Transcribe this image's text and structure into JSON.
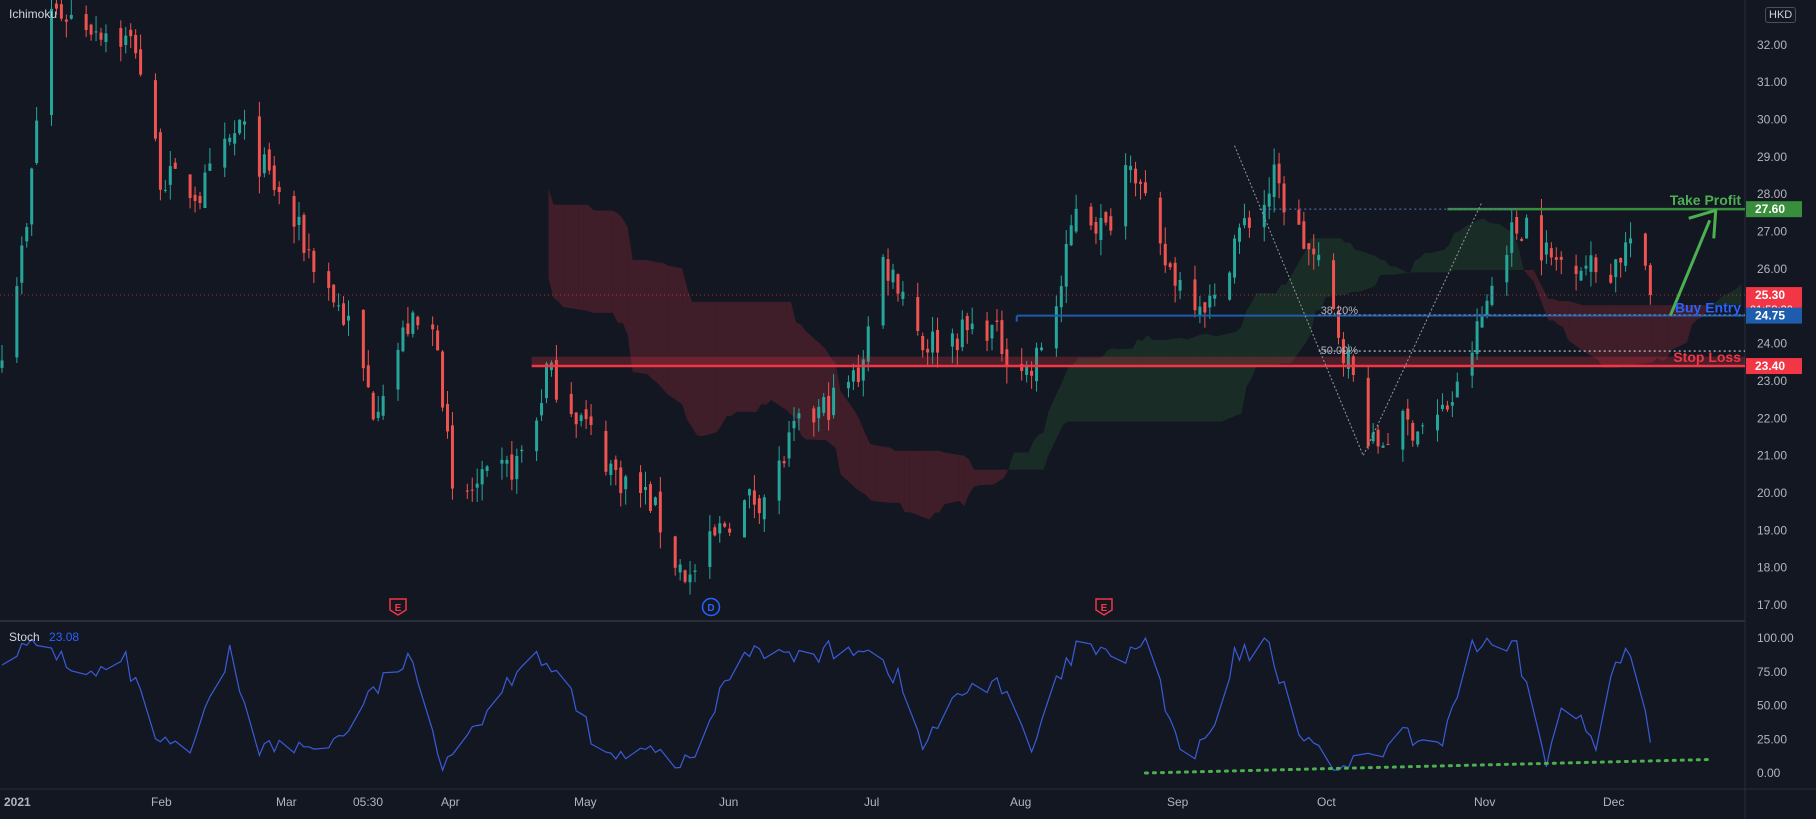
{
  "indicator_labels": {
    "main": "Ichimoku",
    "stoch": "Stoch",
    "stoch_value": "23.08"
  },
  "currency": "HKD",
  "countdown": "01:58:20",
  "event_markers": [
    "E",
    "D",
    "E"
  ],
  "time_axis": [
    {
      "label": "2021",
      "bold": true
    },
    {
      "label": "Feb"
    },
    {
      "label": "Mar"
    },
    {
      "label": "05:30"
    },
    {
      "label": "Apr"
    },
    {
      "label": "May"
    },
    {
      "label": "Jun"
    },
    {
      "label": "Jul"
    },
    {
      "label": "Aug"
    },
    {
      "label": "Sep"
    },
    {
      "label": "Oct"
    },
    {
      "label": "Nov"
    },
    {
      "label": "Dec"
    }
  ],
  "price_ticks": [
    "17.00",
    "18.00",
    "19.00",
    "20.00",
    "21.00",
    "22.00",
    "23.00",
    "24.00",
    "25.00",
    "26.00",
    "27.00",
    "28.00",
    "29.00",
    "30.00",
    "31.00",
    "32.00"
  ],
  "stoch_ticks": [
    "0.00",
    "25.00",
    "50.00",
    "75.00",
    "100.00"
  ],
  "price_badges": [
    {
      "value": "27.60",
      "color": "#388e3c"
    },
    {
      "value": "25.30",
      "color": "#f23645"
    },
    {
      "value": "24.75",
      "color": "#1e5cad"
    },
    {
      "value": "23.40",
      "color": "#f23645"
    }
  ],
  "annotations": [
    {
      "text": "Take Profit",
      "color": "#4caf50"
    },
    {
      "text": "Buy Entry",
      "color": "#2962ff"
    },
    {
      "text": "Stop Loss",
      "color": "#f23645"
    }
  ],
  "fib_labels": [
    "38.20%",
    "50.00%"
  ],
  "chart_data": [
    {
      "type": "candlestick",
      "symbol_currency": "HKD",
      "y_range": [
        16.6,
        33.2
      ],
      "levels": {
        "take_profit": 27.6,
        "last_price": 25.3,
        "buy_entry": 24.75,
        "stop_loss": 23.4
      },
      "close_path": [
        {
          "date": "2021-01-01",
          "close": 24.0
        },
        {
          "date": "2021-01-06",
          "close": 27.0
        },
        {
          "date": "2021-01-10",
          "close": 33.0
        },
        {
          "date": "2021-01-20",
          "close": 32.5
        },
        {
          "date": "2021-01-28",
          "close": 32.0
        },
        {
          "date": "2021-02-02",
          "close": 28.5
        },
        {
          "date": "2021-02-10",
          "close": 28.0
        },
        {
          "date": "2021-02-18",
          "close": 29.8
        },
        {
          "date": "2021-02-25",
          "close": 28.2
        },
        {
          "date": "2021-03-05",
          "close": 26.2
        },
        {
          "date": "2021-03-12",
          "close": 24.5
        },
        {
          "date": "2021-03-17",
          "close": 22.3
        },
        {
          "date": "2021-03-24",
          "close": 24.5
        },
        {
          "date": "2021-03-30",
          "close": 24.2
        },
        {
          "date": "2021-04-02",
          "close": 19.8
        },
        {
          "date": "2021-04-08",
          "close": 20.2
        },
        {
          "date": "2021-04-15",
          "close": 20.8
        },
        {
          "date": "2021-04-19",
          "close": 22.0
        },
        {
          "date": "2021-04-21",
          "close": 23.3
        },
        {
          "date": "2021-04-28",
          "close": 22.0
        },
        {
          "date": "2021-05-05",
          "close": 20.5
        },
        {
          "date": "2021-05-12",
          "close": 19.8
        },
        {
          "date": "2021-05-17",
          "close": 18.2
        },
        {
          "date": "2021-05-20",
          "close": 17.7
        },
        {
          "date": "2021-05-27",
          "close": 19.2
        },
        {
          "date": "2021-06-01",
          "close": 19.8
        },
        {
          "date": "2021-06-05",
          "close": 20.0
        },
        {
          "date": "2021-06-10",
          "close": 21.6
        },
        {
          "date": "2021-06-18",
          "close": 22.5
        },
        {
          "date": "2021-06-23",
          "close": 23.2
        },
        {
          "date": "2021-06-28",
          "close": 26.2
        },
        {
          "date": "2021-07-02",
          "close": 25.5
        },
        {
          "date": "2021-07-06",
          "close": 24.0
        },
        {
          "date": "2021-07-12",
          "close": 24.2
        },
        {
          "date": "2021-07-19",
          "close": 24.5
        },
        {
          "date": "2021-07-23",
          "close": 23.8
        },
        {
          "date": "2021-07-28",
          "close": 23.2
        },
        {
          "date": "2021-08-03",
          "close": 25.5
        },
        {
          "date": "2021-08-06",
          "close": 27.8
        },
        {
          "date": "2021-08-12",
          "close": 27.0
        },
        {
          "date": "2021-08-17",
          "close": 29.2
        },
        {
          "date": "2021-08-22",
          "close": 26.5
        },
        {
          "date": "2021-08-28",
          "close": 25.5
        },
        {
          "date": "2021-09-03",
          "close": 25.0
        },
        {
          "date": "2021-09-07",
          "close": 26.8
        },
        {
          "date": "2021-09-13",
          "close": 27.8
        },
        {
          "date": "2021-09-15",
          "close": 28.4
        },
        {
          "date": "2021-09-19",
          "close": 27.2
        },
        {
          "date": "2021-09-24",
          "close": 26.0
        },
        {
          "date": "2021-09-30",
          "close": 23.5
        },
        {
          "date": "2021-10-05",
          "close": 21.2
        },
        {
          "date": "2021-10-10",
          "close": 21.8
        },
        {
          "date": "2021-10-17",
          "close": 21.8
        },
        {
          "date": "2021-10-22",
          "close": 22.7
        },
        {
          "date": "2021-10-26",
          "close": 24.3
        },
        {
          "date": "2021-11-01",
          "close": 26.8
        },
        {
          "date": "2021-11-05",
          "close": 27.3
        },
        {
          "date": "2021-11-10",
          "close": 26.2
        },
        {
          "date": "2021-11-15",
          "close": 26.3
        },
        {
          "date": "2021-11-21",
          "close": 25.8
        },
        {
          "date": "2021-11-26",
          "close": 26.8
        },
        {
          "date": "2021-11-30",
          "close": 25.3
        }
      ]
    },
    {
      "type": "line",
      "name": "Stoch",
      "last_value": 23.08,
      "y_range": [
        0,
        100
      ],
      "values_path": [
        {
          "date": "2021-01-01",
          "value": 88
        },
        {
          "date": "2021-01-10",
          "value": 95
        },
        {
          "date": "2021-01-18",
          "value": 70
        },
        {
          "date": "2021-01-26",
          "value": 82
        },
        {
          "date": "2021-02-02",
          "value": 20
        },
        {
          "date": "2021-02-08",
          "value": 15
        },
        {
          "date": "2021-02-16",
          "value": 88
        },
        {
          "date": "2021-02-22",
          "value": 20
        },
        {
          "date": "2021-03-02",
          "value": 18
        },
        {
          "date": "2021-03-10",
          "value": 25
        },
        {
          "date": "2021-03-17",
          "value": 60
        },
        {
          "date": "2021-03-24",
          "value": 85
        },
        {
          "date": "2021-03-31",
          "value": 10
        },
        {
          "date": "2021-04-10",
          "value": 50
        },
        {
          "date": "2021-04-18",
          "value": 95
        },
        {
          "date": "2021-04-26",
          "value": 55
        },
        {
          "date": "2021-05-03",
          "value": 10
        },
        {
          "date": "2021-05-12",
          "value": 15
        },
        {
          "date": "2021-05-20",
          "value": 5
        },
        {
          "date": "2021-05-28",
          "value": 75
        },
        {
          "date": "2021-06-02",
          "value": 95
        },
        {
          "date": "2021-06-10",
          "value": 85
        },
        {
          "date": "2021-06-17",
          "value": 90
        },
        {
          "date": "2021-06-24",
          "value": 95
        },
        {
          "date": "2021-07-01",
          "value": 70
        },
        {
          "date": "2021-07-06",
          "value": 20
        },
        {
          "date": "2021-07-14",
          "value": 60
        },
        {
          "date": "2021-07-21",
          "value": 70
        },
        {
          "date": "2021-07-28",
          "value": 15
        },
        {
          "date": "2021-08-02",
          "value": 65
        },
        {
          "date": "2021-08-07",
          "value": 98
        },
        {
          "date": "2021-08-14",
          "value": 80
        },
        {
          "date": "2021-08-20",
          "value": 100
        },
        {
          "date": "2021-08-28",
          "value": 3
        },
        {
          "date": "2021-09-04",
          "value": 40
        },
        {
          "date": "2021-09-07",
          "value": 85
        },
        {
          "date": "2021-09-14",
          "value": 95
        },
        {
          "date": "2021-09-19",
          "value": 40
        },
        {
          "date": "2021-09-25",
          "value": 8
        },
        {
          "date": "2021-10-03",
          "value": 5
        },
        {
          "date": "2021-10-11",
          "value": 28
        },
        {
          "date": "2021-10-18",
          "value": 15
        },
        {
          "date": "2021-10-25",
          "value": 95
        },
        {
          "date": "2021-10-31",
          "value": 90
        },
        {
          "date": "2021-11-03",
          "value": 90
        },
        {
          "date": "2021-11-09",
          "value": 10
        },
        {
          "date": "2021-11-13",
          "value": 55
        },
        {
          "date": "2021-11-19",
          "value": 20
        },
        {
          "date": "2021-11-23",
          "value": 90
        },
        {
          "date": "2021-11-26",
          "value": 88
        },
        {
          "date": "2021-11-30",
          "value": 23.08
        }
      ],
      "trendline": [
        {
          "date": "2021-08-20",
          "value": 0
        },
        {
          "date": "2021-12-12",
          "value": 10
        }
      ]
    }
  ]
}
